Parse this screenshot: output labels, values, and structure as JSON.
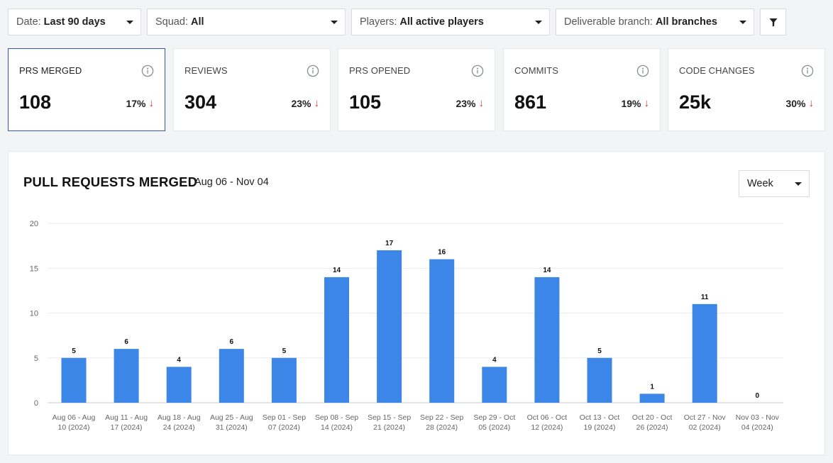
{
  "filters": [
    {
      "label": "Date:",
      "value": "Last 90 days"
    },
    {
      "label": "Squad:",
      "value": "All"
    },
    {
      "label": "Players:",
      "value": "All active players"
    },
    {
      "label": "Deliverable branch:",
      "value": "All branches"
    }
  ],
  "filter_button_icon": "filter-icon",
  "cards": [
    {
      "title": "PRS MERGED",
      "value": "108",
      "change": "17%",
      "trend": "down",
      "active": true
    },
    {
      "title": "REVIEWS",
      "value": "304",
      "change": "23%",
      "trend": "down",
      "active": false
    },
    {
      "title": "PRS OPENED",
      "value": "105",
      "change": "23%",
      "trend": "down",
      "active": false
    },
    {
      "title": "COMMITS",
      "value": "861",
      "change": "19%",
      "trend": "down",
      "active": false
    },
    {
      "title": "CODE CHANGES",
      "value": "25k",
      "change": "30%",
      "trend": "down",
      "active": false
    }
  ],
  "panel": {
    "title": "PULL REQUESTS MERGED",
    "range": "Aug 06 - Nov 04",
    "granularity": "Week"
  },
  "colors": {
    "bar": "#3b86e6",
    "down_arrow": "#d23b3b",
    "active_border": "#2f5aa8"
  },
  "chart_data": {
    "type": "bar",
    "title": "PULL REQUESTS MERGED",
    "xlabel": "",
    "ylabel": "",
    "ylim": [
      0,
      20
    ],
    "yticks": [
      0,
      5,
      10,
      15,
      20
    ],
    "grid": true,
    "categories": [
      [
        "Aug 06 - Aug",
        "10 (2024)"
      ],
      [
        "Aug 11 - Aug",
        "17 (2024)"
      ],
      [
        "Aug 18 - Aug",
        "24 (2024)"
      ],
      [
        "Aug 25 - Aug",
        "31 (2024)"
      ],
      [
        "Sep 01 - Sep",
        "07 (2024)"
      ],
      [
        "Sep 08 - Sep",
        "14 (2024)"
      ],
      [
        "Sep 15 - Sep",
        "21 (2024)"
      ],
      [
        "Sep 22 - Sep",
        "28 (2024)"
      ],
      [
        "Sep 29 - Oct",
        "05 (2024)"
      ],
      [
        "Oct 06 - Oct",
        "12 (2024)"
      ],
      [
        "Oct 13 - Oct",
        "19 (2024)"
      ],
      [
        "Oct 20 - Oct",
        "26 (2024)"
      ],
      [
        "Oct 27 - Nov",
        "02 (2024)"
      ],
      [
        "Nov 03 - Nov",
        "04 (2024)"
      ]
    ],
    "values": [
      5,
      6,
      4,
      6,
      5,
      14,
      17,
      16,
      4,
      14,
      5,
      1,
      11,
      0
    ]
  }
}
